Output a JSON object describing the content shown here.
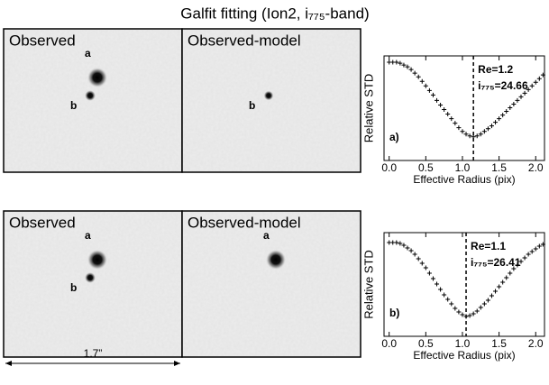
{
  "title": "Galfit fitting  (Ion2, i₇₇₅-band)",
  "images": [
    {
      "panels": [
        {
          "label": "Observed",
          "sources": [
            "a",
            "b"
          ]
        },
        {
          "label": "Observed-model",
          "sources": [
            "b"
          ]
        }
      ]
    },
    {
      "panels": [
        {
          "label": "Observed",
          "sources": [
            "a",
            "b"
          ]
        },
        {
          "label": "Observed-model",
          "sources": [
            "a"
          ]
        }
      ],
      "scale": "1.7”"
    }
  ],
  "chart_data": [
    {
      "type": "scatter",
      "panel": "a)",
      "xlabel": "Effective Radius (pix)",
      "ylabel": "Relative STD",
      "annotations": [
        "Re=1.2",
        "i₇₇₅=24.66"
      ],
      "vline": 1.15,
      "x": [
        0,
        0.05,
        0.1,
        0.15,
        0.2,
        0.25,
        0.3,
        0.35,
        0.4,
        0.45,
        0.5,
        0.55,
        0.6,
        0.65,
        0.7,
        0.75,
        0.8,
        0.85,
        0.9,
        0.95,
        1,
        1.05,
        1.1,
        1.15,
        1.2,
        1.25,
        1.3,
        1.35,
        1.4,
        1.45,
        1.5,
        1.55,
        1.6,
        1.65,
        1.7,
        1.75,
        1.8,
        1.85,
        1.9,
        1.95,
        2,
        2.05,
        2.1
      ],
      "values": [
        0.93,
        0.93,
        0.93,
        0.92,
        0.9,
        0.88,
        0.85,
        0.81,
        0.77,
        0.72,
        0.67,
        0.62,
        0.57,
        0.51,
        0.46,
        0.41,
        0.36,
        0.31,
        0.26,
        0.21,
        0.17,
        0.14,
        0.12,
        0.11,
        0.12,
        0.14,
        0.17,
        0.2,
        0.23,
        0.27,
        0.31,
        0.35,
        0.39,
        0.43,
        0.47,
        0.51,
        0.55,
        0.59,
        0.63,
        0.67,
        0.71,
        0.75,
        0.79
      ],
      "xlim": [
        -0.07,
        2.12
      ],
      "ylim": [
        -0.15,
        1
      ],
      "xticks": [
        {
          "value": 0,
          "label": "0.0"
        },
        {
          "value": 0.5,
          "label": "0.5"
        },
        {
          "value": 1,
          "label": "1.0"
        },
        {
          "value": 1.5,
          "label": "1.5"
        },
        {
          "value": 2,
          "label": "2.0"
        }
      ]
    },
    {
      "type": "scatter",
      "panel": "b)",
      "xlabel": "Effective Radius (pix)",
      "ylabel": "Relative STD",
      "annotations": [
        "Re=1.1",
        "i₇₇₅=26.41"
      ],
      "vline": 1.05,
      "x": [
        0,
        0.05,
        0.1,
        0.15,
        0.2,
        0.25,
        0.3,
        0.35,
        0.4,
        0.45,
        0.5,
        0.55,
        0.6,
        0.65,
        0.7,
        0.75,
        0.8,
        0.85,
        0.9,
        0.95,
        1,
        1.05,
        1.1,
        1.15,
        1.2,
        1.25,
        1.3,
        1.35,
        1.4,
        1.45,
        1.5,
        1.55,
        1.6,
        1.65,
        1.7,
        1.75,
        1.8,
        1.85,
        1.9,
        1.95,
        2,
        2.05,
        2.1
      ],
      "values": [
        0.89,
        0.89,
        0.89,
        0.88,
        0.86,
        0.83,
        0.8,
        0.76,
        0.71,
        0.66,
        0.61,
        0.55,
        0.49,
        0.43,
        0.37,
        0.31,
        0.26,
        0.21,
        0.16,
        0.12,
        0.09,
        0.07,
        0.08,
        0.1,
        0.13,
        0.17,
        0.21,
        0.25,
        0.3,
        0.35,
        0.4,
        0.45,
        0.5,
        0.55,
        0.6,
        0.64,
        0.68,
        0.72,
        0.76,
        0.79,
        0.82,
        0.85,
        0.87
      ],
      "xlim": [
        -0.07,
        2.12
      ],
      "ylim": [
        -0.15,
        1
      ],
      "xticks": [
        {
          "value": 0,
          "label": "0.0"
        },
        {
          "value": 0.5,
          "label": "0.5"
        },
        {
          "value": 1,
          "label": "1.0"
        },
        {
          "value": 1.5,
          "label": "1.5"
        },
        {
          "value": 2,
          "label": "2.0"
        }
      ]
    }
  ]
}
